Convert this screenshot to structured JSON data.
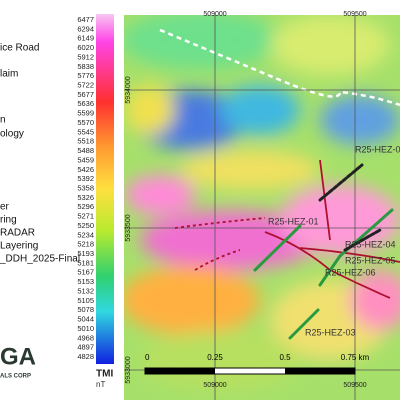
{
  "legend_items": [
    "ice Road",
    "laim",
    "n",
    "ology",
    "er",
    "ring",
    "RADAR",
    "Layering",
    "_DDH_2025-Final"
  ],
  "colorbar": {
    "labels": [
      "6477",
      "6294",
      "6149",
      "6020",
      "5912",
      "5838",
      "5776",
      "5722",
      "5677",
      "5636",
      "5599",
      "5570",
      "5545",
      "5518",
      "5488",
      "5459",
      "5426",
      "5392",
      "5358",
      "5326",
      "5296",
      "5271",
      "5250",
      "5234",
      "5218",
      "5193",
      "5181",
      "5167",
      "5153",
      "5132",
      "5105",
      "5078",
      "5044",
      "5010",
      "4968",
      "4897",
      "4828"
    ],
    "title": "TMI",
    "unit": "nT"
  },
  "coordinates": {
    "easting": [
      "509000",
      "509500"
    ],
    "northing": [
      "5934000",
      "5933500",
      "5933000"
    ]
  },
  "drill_holes": [
    "R25-HEZ-0",
    "R25-HEZ-01",
    "R25-HEZ-04",
    "R25-HEZ-05",
    "R25-HEZ-06",
    "R25-HEZ-03"
  ],
  "scale_bar": [
    "0",
    "0.25",
    "0.5",
    "0.75 km"
  ],
  "logo": {
    "mark": "GA",
    "sub": "ALS CORP"
  }
}
